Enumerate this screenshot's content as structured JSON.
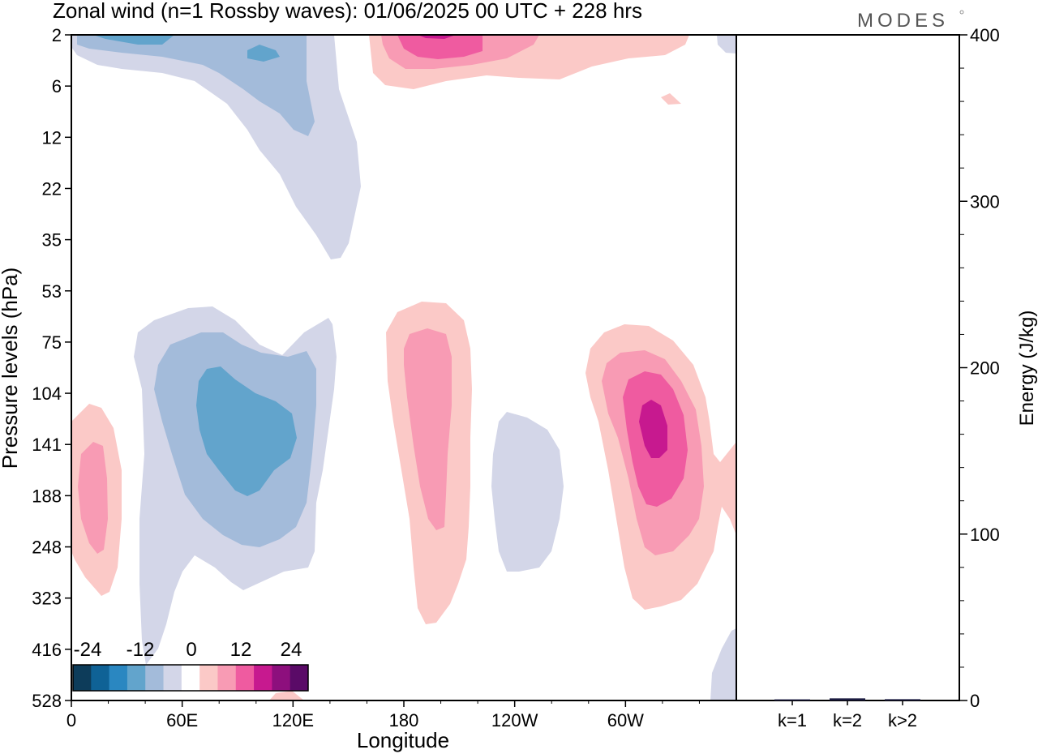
{
  "title": "Zonal wind (n=1 Rossby waves):  01/06/2025  00 UTC  + 228 hrs",
  "logo": "MODES",
  "chart_data": [
    {
      "type": "heatmap",
      "xlabel": "Longitude",
      "ylabel": "Pressure levels (hPa)",
      "x_ticks": [
        "0",
        "60E",
        "120E",
        "180",
        "120W",
        "60W"
      ],
      "y_ticks": [
        "2",
        "6",
        "12",
        "22",
        "35",
        "53",
        "75",
        "104",
        "141",
        "188",
        "248",
        "323",
        "416",
        "528"
      ],
      "colorbar": {
        "ticks": [
          "-24",
          "-12",
          "0",
          "12",
          "24"
        ],
        "colors": [
          "#0d3c5a",
          "#0f6296",
          "#2a87c1",
          "#62a4cc",
          "#a3bbda",
          "#d3d6e8",
          "#ffffff",
          "#fbc9c7",
          "#f89bb4",
          "#ef5ba0",
          "#c7198f",
          "#8d0f7d",
          "#5a0a67"
        ]
      },
      "regions": [
        {
          "sign": "negative",
          "lon": 110,
          "p": "2–35",
          "peak": -12
        },
        {
          "sign": "positive",
          "lon": 190,
          "p": "2–6",
          "peak": 18
        },
        {
          "sign": "positive",
          "lon": 15,
          "p": "104–323",
          "peak": 8
        },
        {
          "sign": "negative",
          "lon": 95,
          "p": "53–416",
          "peak": -12
        },
        {
          "sign": "positive",
          "lon": 195,
          "p": "53–416",
          "peak": 10
        },
        {
          "sign": "negative",
          "lon": 240,
          "p": "104–323",
          "peak": -4
        },
        {
          "sign": "positive",
          "lon": 320,
          "p": "75–323",
          "peak": 20
        }
      ]
    },
    {
      "type": "bar",
      "ylabel": "Energy (J/kg)",
      "ylim": [
        0,
        400
      ],
      "y_ticks": [
        "0",
        "100",
        "200",
        "300",
        "400"
      ],
      "categories": [
        "k=1",
        "k=2",
        "k>2"
      ],
      "values": [
        0.2,
        0.8,
        0.3
      ]
    }
  ]
}
